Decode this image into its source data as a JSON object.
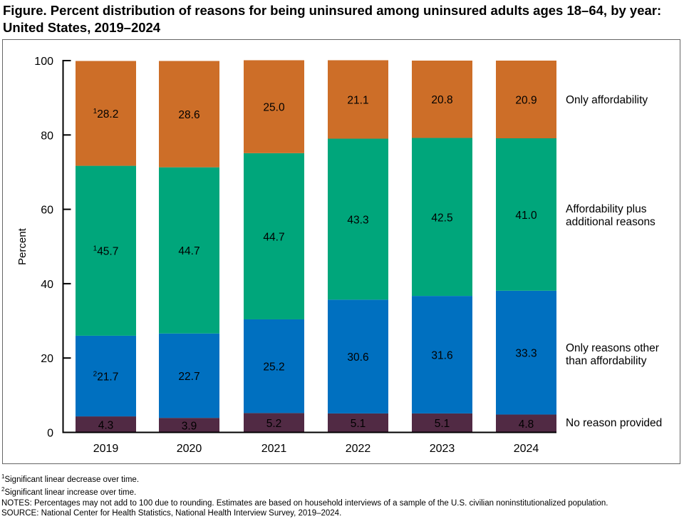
{
  "title": "Figure. Percent distribution of reasons for being uninsured among uninsured adults ages 18–64, by year: United States, 2019–2024",
  "chart_data": {
    "type": "bar",
    "stacked": true,
    "categories": [
      "2019",
      "2020",
      "2021",
      "2022",
      "2023",
      "2024"
    ],
    "ylabel": "Percent",
    "ylim": [
      0,
      100
    ],
    "yticks": [
      0,
      20,
      40,
      60,
      80,
      100
    ],
    "grid": false,
    "legend": "right, direct labels",
    "series": [
      {
        "name": "No reason provided",
        "color": "#512A44",
        "values": [
          4.3,
          3.9,
          5.2,
          5.1,
          5.1,
          4.8
        ],
        "labels": [
          "4.3",
          "3.9",
          "5.2",
          "5.1",
          "5.1",
          "4.8"
        ],
        "superscripts": [
          "",
          "",
          "",
          "",
          "",
          ""
        ]
      },
      {
        "name": "Only reasons other than affordability",
        "color": "#0070C0",
        "values": [
          21.7,
          22.7,
          25.2,
          30.6,
          31.6,
          33.3
        ],
        "labels": [
          "21.7",
          "22.7",
          "25.2",
          "30.6",
          "31.6",
          "33.3"
        ],
        "superscripts": [
          "2",
          "",
          "",
          "",
          "",
          ""
        ]
      },
      {
        "name": "Affordability plus additional reasons",
        "color": "#00A67B",
        "values": [
          45.7,
          44.7,
          44.7,
          43.3,
          42.5,
          41.0
        ],
        "labels": [
          "45.7",
          "44.7",
          "44.7",
          "43.3",
          "42.5",
          "41.0"
        ],
        "superscripts": [
          "1",
          "",
          "",
          "",
          "",
          ""
        ]
      },
      {
        "name": "Only affordability",
        "color": "#CD6E28",
        "values": [
          28.2,
          28.6,
          25.0,
          21.1,
          20.8,
          20.9
        ],
        "labels": [
          "28.2",
          "28.6",
          "25.0",
          "21.1",
          "20.8",
          "20.9"
        ],
        "superscripts": [
          "1",
          "",
          "",
          "",
          "",
          ""
        ]
      }
    ],
    "legend_lines": [
      [
        "No reason provided"
      ],
      [
        "Only reasons other",
        "than affordability"
      ],
      [
        "Affordability plus",
        "additional reasons"
      ],
      [
        "Only affordability"
      ]
    ]
  },
  "notes": {
    "footnote1_mark": "1",
    "footnote1": "Significant linear decrease over time.",
    "footnote2_mark": "2",
    "footnote2": "Significant linear increase over time.",
    "notes": "NOTES: Percentages may not add to 100 due to rounding. Estimates are based on household interviews of a sample of the U.S. civilian noninstitutionalized population.",
    "source": "SOURCE: National Center for Health Statistics, National Health Interview Survey, 2019–2024."
  }
}
